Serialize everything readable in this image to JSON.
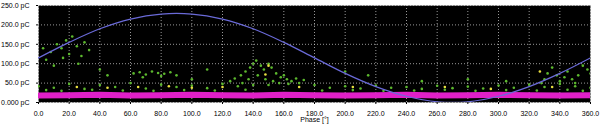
{
  "chart_data": {
    "type": "scatter",
    "xlabel": "Phase [°]",
    "xlim": [
      0,
      360
    ],
    "ylim": [
      0,
      250
    ],
    "xticks": [
      {
        "value": 0,
        "label": "0.0"
      },
      {
        "value": 20,
        "label": "20.0"
      },
      {
        "value": 40,
        "label": "40.0"
      },
      {
        "value": 60,
        "label": "60.0"
      },
      {
        "value": 80,
        "label": "80.0"
      },
      {
        "value": 100,
        "label": "100.0"
      },
      {
        "value": 120,
        "label": "120.0"
      },
      {
        "value": 140,
        "label": "140.0"
      },
      {
        "value": 160,
        "label": "160.0"
      },
      {
        "value": 180,
        "label": "180.0"
      },
      {
        "value": 200,
        "label": "200.0"
      },
      {
        "value": 220,
        "label": "220.0"
      },
      {
        "value": 240,
        "label": "240.0"
      },
      {
        "value": 260,
        "label": "260.0"
      },
      {
        "value": 280,
        "label": "280.0"
      },
      {
        "value": 300,
        "label": "300.0"
      },
      {
        "value": 320,
        "label": "320.0"
      },
      {
        "value": 340,
        "label": "340.0"
      },
      {
        "value": 360,
        "label": "360.0"
      }
    ],
    "yticks": [
      {
        "value": 0,
        "label": "0.000 pC"
      },
      {
        "value": 50,
        "label": "50.0 pC"
      },
      {
        "value": 100,
        "label": "100.0 pC"
      },
      {
        "value": 150,
        "label": "150.0 pC"
      },
      {
        "value": 200,
        "label": "200.0 pC"
      },
      {
        "value": 250,
        "label": "250.0 pC"
      }
    ],
    "grid": true,
    "series": [
      {
        "type": "line",
        "line_style": "thick",
        "color": "#e020c8",
        "x": [
          0,
          20,
          40,
          60,
          80,
          100,
          120,
          140,
          160,
          180,
          200,
          220,
          240,
          260,
          280,
          300,
          320,
          340,
          360
        ],
        "values": [
          18,
          19,
          20,
          18,
          19,
          20,
          19,
          18,
          20,
          19,
          18,
          19,
          20,
          18,
          19,
          20,
          19,
          18,
          19
        ]
      },
      {
        "type": "scatter",
        "color": "#5cb82e",
        "x": [
          5,
          8,
          12,
          15,
          18,
          20,
          22,
          25,
          28,
          30,
          10,
          26,
          3,
          16,
          33,
          0,
          10,
          20,
          30,
          40,
          50,
          60,
          70,
          80,
          90,
          100,
          110,
          120,
          130,
          180,
          190,
          200,
          210,
          220,
          230,
          240,
          250,
          260,
          270,
          280,
          290,
          300,
          310,
          320,
          330,
          340,
          350,
          360,
          5,
          15,
          35,
          55,
          75,
          95,
          115,
          135,
          185,
          205,
          225,
          245,
          265,
          285,
          305,
          325,
          345,
          355,
          62,
          66,
          70,
          74,
          78,
          82,
          86,
          90,
          68,
          80,
          125,
          128,
          132,
          135,
          138,
          140,
          142,
          145,
          147,
          150,
          152,
          155,
          158,
          160,
          162,
          165,
          168,
          170,
          173,
          137,
          143,
          148,
          153,
          157,
          163,
          133,
          140,
          150,
          330,
          332,
          335,
          338,
          340,
          343,
          345,
          348,
          352,
          355,
          358,
          350,
          328,
          360,
          200,
          215,
          280,
          305,
          110,
          100,
          45,
          40,
          250
        ],
        "values": [
          110,
          130,
          150,
          140,
          160,
          125,
          170,
          145,
          120,
          155,
          95,
          100,
          140,
          115,
          135,
          42,
          38,
          48,
          35,
          45,
          40,
          50,
          36,
          46,
          40,
          44,
          37,
          48,
          42,
          45,
          38,
          42,
          36,
          44,
          38,
          40,
          35,
          43,
          37,
          41,
          36,
          44,
          38,
          46,
          40,
          48,
          42,
          38,
          32,
          30,
          33,
          31,
          30,
          32,
          31,
          33,
          31,
          32,
          30,
          31,
          33,
          30,
          32,
          31,
          33,
          30,
          75,
          78,
          72,
          80,
          76,
          74,
          78,
          70,
          65,
          68,
          55,
          62,
          70,
          80,
          90,
          100,
          108,
          95,
          85,
          100,
          90,
          75,
          65,
          70,
          60,
          55,
          62,
          50,
          58,
          60,
          70,
          60,
          55,
          50,
          48,
          50,
          45,
          45,
          60,
          75,
          90,
          70,
          55,
          65,
          80,
          60,
          70,
          95,
          85,
          50,
          50,
          75,
          80,
          70,
          60,
          55,
          85,
          60,
          70,
          85,
          55
        ]
      },
      {
        "type": "scatter",
        "color": "#e8e040",
        "x": [
          25,
          45,
          65,
          85,
          100,
          120,
          148,
          150,
          170,
          205,
          265,
          295,
          327,
          335
        ],
        "values": [
          40,
          38,
          40,
          42,
          38,
          40,
          72,
          95,
          40,
          40,
          40,
          35,
          80,
          40
        ]
      },
      {
        "type": "line",
        "line_style": "solid",
        "color": "#6a6ad8",
        "x": [
          0,
          20,
          40,
          60,
          80,
          100,
          120,
          140,
          160,
          180,
          200,
          220,
          240,
          260,
          280,
          300,
          320,
          340,
          360
        ],
        "values": [
          115,
          155,
          190,
          215,
          228,
          228,
          215,
          190,
          155,
          115,
          75,
          41,
          16,
          2,
          2,
          16,
          41,
          75,
          115
        ]
      }
    ]
  }
}
